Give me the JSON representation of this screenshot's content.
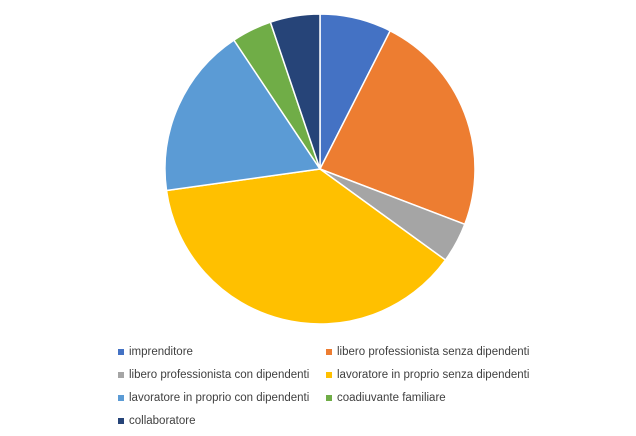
{
  "chart_data": {
    "type": "pie",
    "title": "",
    "legend_position": "bottom",
    "slices": [
      {
        "label": "imprenditore",
        "value": 7.5,
        "color": "#4472C4"
      },
      {
        "label": "libero professionista senza dipendenti",
        "value": 23.4,
        "color": "#ED7D31"
      },
      {
        "label": "libero professionista con dipendenti",
        "value": 4.2,
        "color": "#A5A5A5"
      },
      {
        "label": "lavoratore in proprio senza dipendenti",
        "value": 37.9,
        "color": "#FFC000"
      },
      {
        "label": "lavoratore in proprio con dipendenti",
        "value": 17.9,
        "color": "#5B9BD5"
      },
      {
        "label": "coadiuvante familiare",
        "value": 4.2,
        "color": "#70AD47"
      },
      {
        "label": "collaboratore",
        "value": 5.2,
        "color": "#264478"
      }
    ]
  }
}
